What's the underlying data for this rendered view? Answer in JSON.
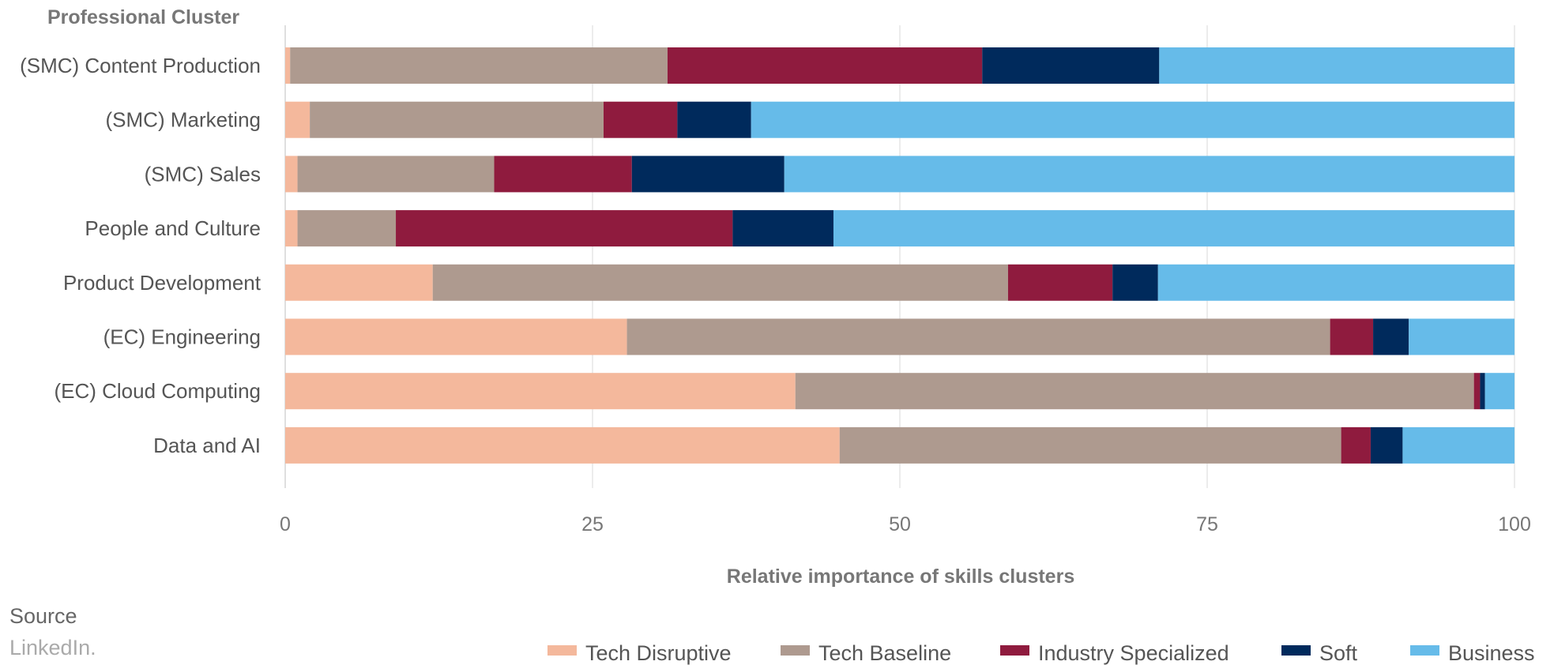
{
  "chart_data": {
    "type": "bar",
    "orientation": "horizontal",
    "stacked": true,
    "ylabel": "Professional Cluster",
    "xlabel": "Relative importance of skills clusters",
    "xlim": [
      0,
      100
    ],
    "xticks": [
      "0",
      "25",
      "50",
      "75",
      "100"
    ],
    "xtick_values": [
      0,
      25,
      50,
      75,
      100
    ],
    "grid": "vertical",
    "legend_position": "bottom-right",
    "categories": [
      "(SMC) Content Production",
      "(SMC) Marketing",
      "(SMC) Sales",
      "People and Culture",
      "Product Development",
      "(EC) Engineering",
      "(EC) Cloud Computing",
      "Data and AI"
    ],
    "series": [
      {
        "name": "Tech Disruptive",
        "color": "#f4b89c",
        "values": [
          0.4,
          2.0,
          1.0,
          1.0,
          12.0,
          27.8,
          41.5,
          45.1
        ]
      },
      {
        "name": "Tech Baseline",
        "color": "#ae9a8f",
        "values": [
          30.7,
          23.9,
          16.0,
          8.0,
          46.8,
          57.2,
          55.2,
          40.8
        ]
      },
      {
        "name": "Industry Specialized",
        "color": "#8f1b3e",
        "values": [
          25.6,
          6.0,
          11.2,
          27.4,
          8.5,
          3.5,
          0.5,
          2.4
        ]
      },
      {
        "name": "Soft",
        "color": "#002a5c",
        "values": [
          14.4,
          6.0,
          12.4,
          8.2,
          3.7,
          2.9,
          0.4,
          2.6
        ]
      },
      {
        "name": "Business",
        "color": "#66bbe9",
        "values": [
          28.9,
          62.1,
          59.4,
          55.4,
          29.0,
          8.6,
          2.4,
          9.1
        ]
      }
    ]
  },
  "source": {
    "title": "Source",
    "text": "LinkedIn."
  },
  "colors": {
    "grid": "#d9d9d9",
    "axis": "#bfbfbf"
  }
}
